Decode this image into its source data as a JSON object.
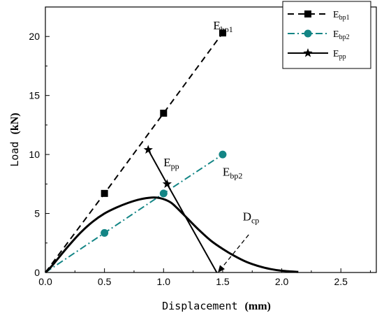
{
  "chart_data": {
    "type": "line",
    "xlabel": "Displacement",
    "xlabel_unit": "(mm)",
    "ylabel": "Load",
    "ylabel_unit": "(kN)",
    "xlim": [
      0,
      2.8
    ],
    "ylim": [
      0,
      22.5
    ],
    "x_ticks": [
      "0.0",
      "0.5",
      "1.0",
      "1.5",
      "2.0",
      "2.5"
    ],
    "y_ticks": [
      "0",
      "5",
      "10",
      "15",
      "20"
    ],
    "grid": false,
    "legend_position": "top-right",
    "series": [
      {
        "name": "E",
        "name_sub": "bp1",
        "color": "#000000",
        "marker": "square",
        "dash": "dashed",
        "points": [
          [
            0,
            0
          ],
          [
            0.5,
            6.7
          ],
          [
            1.0,
            13.5
          ],
          [
            1.5,
            20.3
          ]
        ]
      },
      {
        "name": "E",
        "name_sub": "bp2",
        "color": "#138585",
        "marker": "circle",
        "dash": "dashdot",
        "points": [
          [
            0,
            0
          ],
          [
            0.5,
            3.35
          ],
          [
            1.0,
            6.7
          ],
          [
            1.5,
            10.0
          ]
        ]
      },
      {
        "name": "E",
        "name_sub": "pp",
        "color": "#000000",
        "marker": "star",
        "dash": "solid",
        "points": [
          [
            0.87,
            10.4
          ],
          [
            1.03,
            7.5
          ],
          [
            1.45,
            0
          ]
        ]
      }
    ],
    "load_curve": {
      "color": "#000000",
      "points": [
        [
          0,
          0
        ],
        [
          0.05,
          0.5
        ],
        [
          0.1,
          1.1
        ],
        [
          0.2,
          2.3
        ],
        [
          0.3,
          3.4
        ],
        [
          0.4,
          4.3
        ],
        [
          0.5,
          5.0
        ],
        [
          0.6,
          5.5
        ],
        [
          0.7,
          5.9
        ],
        [
          0.8,
          6.2
        ],
        [
          0.9,
          6.35
        ],
        [
          0.97,
          6.3
        ],
        [
          1.05,
          6.0
        ],
        [
          1.1,
          5.6
        ],
        [
          1.2,
          4.6
        ],
        [
          1.3,
          3.6
        ],
        [
          1.4,
          2.7
        ],
        [
          1.5,
          2.0
        ],
        [
          1.6,
          1.4
        ],
        [
          1.7,
          0.9
        ],
        [
          1.8,
          0.55
        ],
        [
          1.9,
          0.3
        ],
        [
          2.0,
          0.15
        ],
        [
          2.14,
          0.05
        ]
      ]
    },
    "annotations": [
      {
        "main": "E",
        "sub": "bp1",
        "x": 1.42,
        "y": 20.6
      },
      {
        "main": "E",
        "sub": "pp",
        "x": 1.0,
        "y": 9.0
      },
      {
        "main": "E",
        "sub": "bp2",
        "x": 1.5,
        "y": 8.2
      },
      {
        "main": "D",
        "sub": "cp",
        "x": 1.67,
        "y": 4.4
      }
    ],
    "arrow": {
      "from": [
        1.72,
        3.2
      ],
      "to": [
        1.46,
        0.0
      ]
    }
  }
}
